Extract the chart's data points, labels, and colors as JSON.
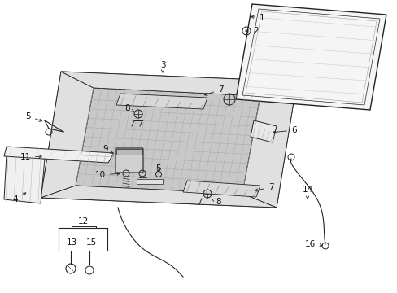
{
  "bg_color": "#ffffff",
  "line_color": "#222222",
  "frame_fill": "#e8e8e8",
  "inner_fill": "#d4d4d4",
  "glass_fill": "#f2f2f2",
  "figsize": [
    4.89,
    3.6
  ],
  "dpi": 100
}
